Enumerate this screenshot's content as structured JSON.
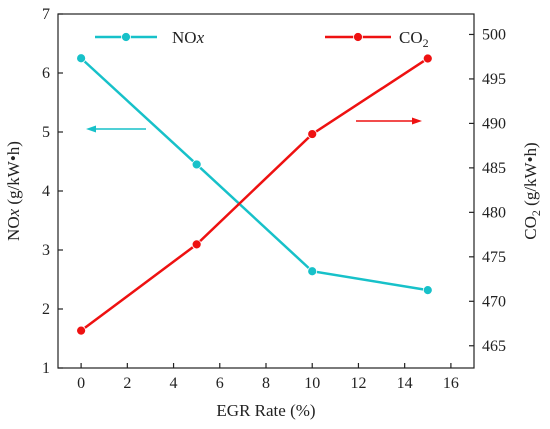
{
  "chart_data": {
    "type": "line",
    "x": [
      0,
      5,
      10,
      15
    ],
    "xlabel": "EGR Rate (%)",
    "xlim": [
      -1,
      17
    ],
    "xticks": [
      0,
      2,
      4,
      6,
      8,
      10,
      12,
      14,
      16
    ],
    "y_left": {
      "label_main": "NO",
      "label_italic": "x",
      "label_unit": " (g/kW•h)",
      "ylim": [
        1,
        7
      ],
      "ticks": [
        1,
        2,
        3,
        4,
        5,
        6,
        7
      ]
    },
    "y_right": {
      "label_main": "CO",
      "label_sub": "2",
      "label_unit": " (g/kW•h)",
      "ylim": [
        462.5,
        502.3
      ],
      "ticks": [
        465,
        470,
        475,
        480,
        485,
        490,
        495,
        500
      ]
    },
    "series": [
      {
        "name": "NOx",
        "legend_main": "NO",
        "legend_italic": "x",
        "axis": "left",
        "color": "#17c1c9",
        "values": [
          6.25,
          4.45,
          2.64,
          2.32
        ]
      },
      {
        "name": "CO2",
        "legend_main": "CO",
        "legend_sub": "2",
        "axis": "right",
        "color": "#ee1111",
        "values": [
          466.7,
          476.4,
          488.8,
          497.3
        ]
      }
    ],
    "grid": false,
    "legend_position": "top",
    "annotations": [
      {
        "type": "arrow",
        "direction": "left",
        "series": "NOx"
      },
      {
        "type": "arrow",
        "direction": "right",
        "series": "CO2"
      }
    ]
  }
}
